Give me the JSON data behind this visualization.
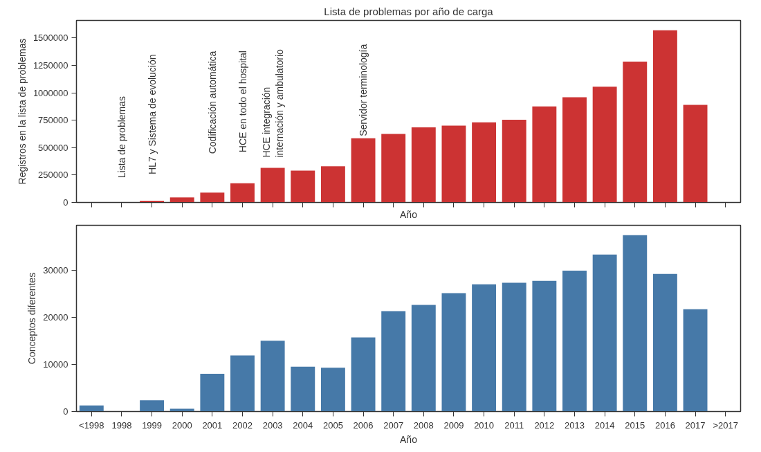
{
  "chart_data": [
    {
      "type": "bar",
      "title": "Lista de problemas por año de carga",
      "xlabel": "Año",
      "ylabel": "Registros en la lista de problemas",
      "categories": [
        null,
        null,
        null,
        null,
        null,
        null,
        null,
        null,
        null,
        null,
        null,
        null,
        null,
        null,
        null,
        null,
        null,
        null,
        null,
        null,
        null,
        null
      ],
      "series": [
        {
          "color": "#cc3333",
          "values": [
            0,
            0,
            15000,
            45000,
            90000,
            175000,
            315000,
            290000,
            330000,
            585000,
            625000,
            685000,
            700000,
            730000,
            755000,
            875000,
            960000,
            1055000,
            1285000,
            1570000,
            890000,
            0
          ]
        }
      ],
      "ylim": [
        0,
        1660000
      ],
      "yticks": [
        0,
        250000,
        500000,
        750000,
        1000000,
        1250000,
        1500000
      ],
      "tick_labels": "y",
      "grid": false,
      "annotations": [
        "Lista de problemas",
        "HL7 y Sistema de evolución",
        "Codificación automática",
        "HCE en todo el hospital",
        "HCE integración\ninternación y ambulatorio",
        "Servidor terminología"
      ]
    },
    {
      "type": "bar",
      "xlabel": "Año",
      "ylabel": "Conceptos diferentes",
      "categories": [
        "<1998",
        "1998",
        "1999",
        "2000",
        "2001",
        "2002",
        "2003",
        "2004",
        "2005",
        "2006",
        "2007",
        "2008",
        "2009",
        "2010",
        "2011",
        "2012",
        "2013",
        "2014",
        "2015",
        "2016",
        "2017",
        ">2017"
      ],
      "series": [
        {
          "color": "#4679a8",
          "values": [
            1300,
            0,
            2400,
            600,
            8000,
            11900,
            15000,
            9500,
            9300,
            15700,
            21300,
            22600,
            25100,
            27000,
            27300,
            27700,
            29900,
            33300,
            37400,
            29200,
            21700,
            0
          ]
        }
      ],
      "ylim": [
        0,
        39500
      ],
      "yticks": [
        0,
        10000,
        20000,
        30000
      ],
      "grid": false
    }
  ]
}
